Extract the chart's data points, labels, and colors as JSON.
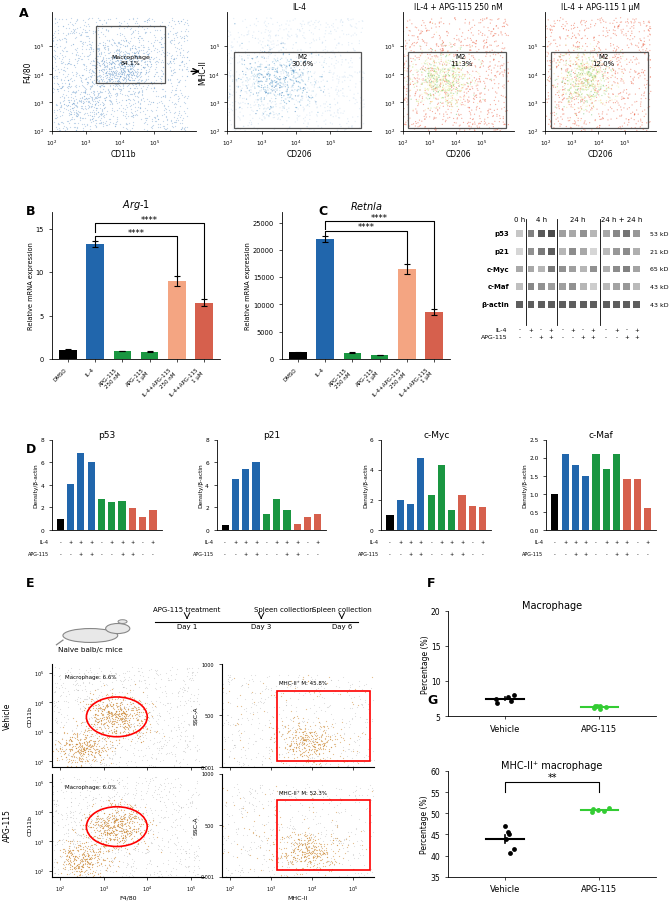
{
  "B_arg1": {
    "title": "Arg-1",
    "categories": [
      "DMSO",
      "IL-4",
      "APG-115 250 nM",
      "APG-115 1 μM",
      "IL-4+APG-115\n250 nM",
      "IL-4+APG-115\n1 μM"
    ],
    "values": [
      1.0,
      13.3,
      0.9,
      0.8,
      9.0,
      6.5
    ],
    "errors": [
      0.1,
      0.35,
      0.05,
      0.05,
      0.55,
      0.45
    ],
    "colors": [
      "#000000",
      "#2166ac",
      "#1a9641",
      "#1a9641",
      "#f4a582",
      "#d6604d"
    ],
    "ylabel": "Relative mRNA expression",
    "ylim": [
      0,
      17
    ],
    "yticks": [
      0,
      5,
      10,
      15
    ]
  },
  "B_retnla": {
    "title": "Retnla",
    "categories": [
      "DMSO",
      "IL-4",
      "APG-115 250 nM",
      "APG-115 1 μM",
      "IL-4+APG-115\n250 nM",
      "IL-4+APG-115\n1 μM"
    ],
    "values": [
      1200,
      22000,
      1100,
      700,
      16500,
      8500
    ],
    "errors": [
      100,
      500,
      80,
      60,
      950,
      550
    ],
    "colors": [
      "#000000",
      "#2166ac",
      "#1a9641",
      "#1a9641",
      "#f4a582",
      "#d6604d"
    ],
    "ylabel": "Relative mRNA expression",
    "ylim": [
      0,
      27000
    ],
    "yticks": [
      0,
      5000,
      10000,
      15000,
      20000,
      25000
    ]
  },
  "D_data": [
    {
      "title": "p53",
      "values": [
        1.0,
        4.1,
        6.8,
        6.0,
        2.7,
        2.5,
        2.6,
        1.9,
        1.1,
        1.8
      ],
      "colors": [
        "#000000",
        "#2166ac",
        "#2166ac",
        "#2166ac",
        "#1a9641",
        "#1a9641",
        "#1a9641",
        "#d6604d",
        "#d6604d",
        "#d6604d"
      ],
      "ylim": [
        0,
        8
      ],
      "yticks": [
        0,
        2,
        4,
        6,
        8
      ]
    },
    {
      "title": "p21",
      "values": [
        0.4,
        4.5,
        5.4,
        6.0,
        1.4,
        2.7,
        1.8,
        0.5,
        1.1,
        1.4
      ],
      "colors": [
        "#000000",
        "#2166ac",
        "#2166ac",
        "#2166ac",
        "#1a9641",
        "#1a9641",
        "#1a9641",
        "#d6604d",
        "#d6604d",
        "#d6604d"
      ],
      "ylim": [
        0,
        8
      ],
      "yticks": [
        0,
        2,
        4,
        6,
        8
      ]
    },
    {
      "title": "c-Myc",
      "values": [
        1.0,
        2.0,
        1.7,
        4.8,
        2.3,
        4.3,
        1.3,
        2.3,
        1.6,
        1.5
      ],
      "colors": [
        "#000000",
        "#2166ac",
        "#2166ac",
        "#2166ac",
        "#1a9641",
        "#1a9641",
        "#1a9641",
        "#d6604d",
        "#d6604d",
        "#d6604d"
      ],
      "ylim": [
        0,
        6
      ],
      "yticks": [
        0,
        2,
        4,
        6
      ]
    },
    {
      "title": "c-Maf",
      "values": [
        1.0,
        2.1,
        1.8,
        1.5,
        2.1,
        1.7,
        2.1,
        1.4,
        1.4,
        0.6
      ],
      "colors": [
        "#000000",
        "#2166ac",
        "#2166ac",
        "#2166ac",
        "#1a9641",
        "#1a9641",
        "#1a9641",
        "#d6604d",
        "#d6604d",
        "#d6604d"
      ],
      "ylim": [
        0,
        2.5
      ],
      "yticks": [
        0.0,
        0.5,
        1.0,
        1.5,
        2.0,
        2.5
      ]
    }
  ],
  "D_il4": [
    "-",
    "+",
    "+",
    "+",
    "-",
    "+",
    "+",
    "+",
    "-",
    "+",
    "+",
    "+"
  ],
  "D_apg": [
    "-",
    "-",
    "+",
    "+",
    "-",
    "-",
    "+",
    "+",
    "-",
    "-",
    "+",
    "+"
  ],
  "F": {
    "title": "Macrophage",
    "vehicle_vals": [
      8.0,
      7.8,
      7.2,
      6.9,
      7.5
    ],
    "apg_vals": [
      6.3,
      6.5,
      6.4,
      6.2,
      6.1,
      6.4
    ],
    "ylabel": "Percentage (%)",
    "ylim": [
      5,
      20
    ],
    "yticks": [
      5,
      10,
      15,
      20
    ]
  },
  "G": {
    "title": "MHC-II⁺ macrophage",
    "vehicle_vals": [
      45.5,
      47.0,
      44.0,
      41.5,
      45.0,
      40.5
    ],
    "apg_vals": [
      50.5,
      51.0,
      50.3,
      50.8,
      51.2
    ],
    "ylabel": "Percentage (%)",
    "ylim": [
      35,
      60
    ],
    "yticks": [
      35,
      40,
      45,
      50,
      55,
      60
    ]
  },
  "C_timepoints": [
    "0 h",
    "4 h",
    "24 h",
    "24 h + 24 h"
  ],
  "C_proteins": [
    "p53",
    "p21",
    "c-Myc",
    "c-Maf",
    "β-actin"
  ],
  "C_kd": [
    "53 kD",
    "21 kD",
    "65 kD",
    "43 kD",
    "43 kD"
  ],
  "colors": {
    "black": "#000000",
    "blue": "#2166ac",
    "green": "#1a9641",
    "pink": "#f4a582",
    "red": "#d6604d",
    "dot_green": "#33cc33"
  }
}
